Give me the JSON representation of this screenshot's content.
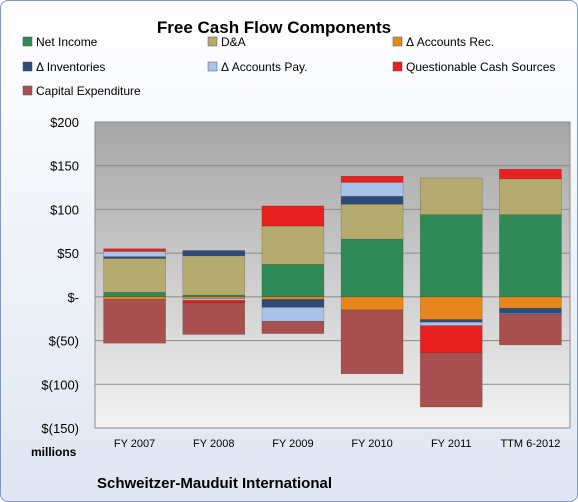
{
  "chart_data": {
    "type": "bar",
    "stacked": true,
    "title": "Free Cash Flow Components",
    "categories": [
      "FY 2007",
      "FY 2008",
      "FY 2009",
      "FY 2010",
      "FY 2011",
      "TTM 6-2012"
    ],
    "y_tick_labels": [
      "$200",
      "$150",
      "$100",
      "$50",
      "$-",
      "$(50)",
      "$(100)",
      "$(150)"
    ],
    "y_tick_values": [
      200,
      150,
      100,
      50,
      0,
      -50,
      -100,
      -150
    ],
    "ylim": [
      -150,
      200
    ],
    "units_label": "millions",
    "company": "Schweitzer-Mauduit International",
    "legend_position": "top",
    "grid": true,
    "series": [
      {
        "name": "Net Income",
        "color": "#2e8b57",
        "values": [
          5,
          2,
          37,
          66,
          94,
          94
        ]
      },
      {
        "name": "D&A",
        "color": "#b5ab6e",
        "values": [
          39,
          45,
          44,
          40,
          42,
          41
        ]
      },
      {
        "name": "Δ Accounts Rec.",
        "color": "#e8861e",
        "values": [
          -3,
          -2,
          -3,
          -15,
          -26,
          -13
        ]
      },
      {
        "name": "Δ Inventories",
        "color": "#2f4a78",
        "values": [
          2,
          6,
          -9,
          9,
          -3,
          -6
        ]
      },
      {
        "name": "Δ Accounts Pay.",
        "color": "#a8c2e8",
        "values": [
          6,
          -2,
          -16,
          16,
          -4,
          -1
        ]
      },
      {
        "name": "Questionable Cash Sources",
        "color": "#e82020",
        "values": [
          3,
          -3,
          23,
          7,
          -31,
          11
        ]
      },
      {
        "name": "Capital Expenditure",
        "color": "#a85050",
        "values": [
          -50,
          -36,
          -14,
          -73,
          -62,
          -35
        ]
      }
    ]
  }
}
